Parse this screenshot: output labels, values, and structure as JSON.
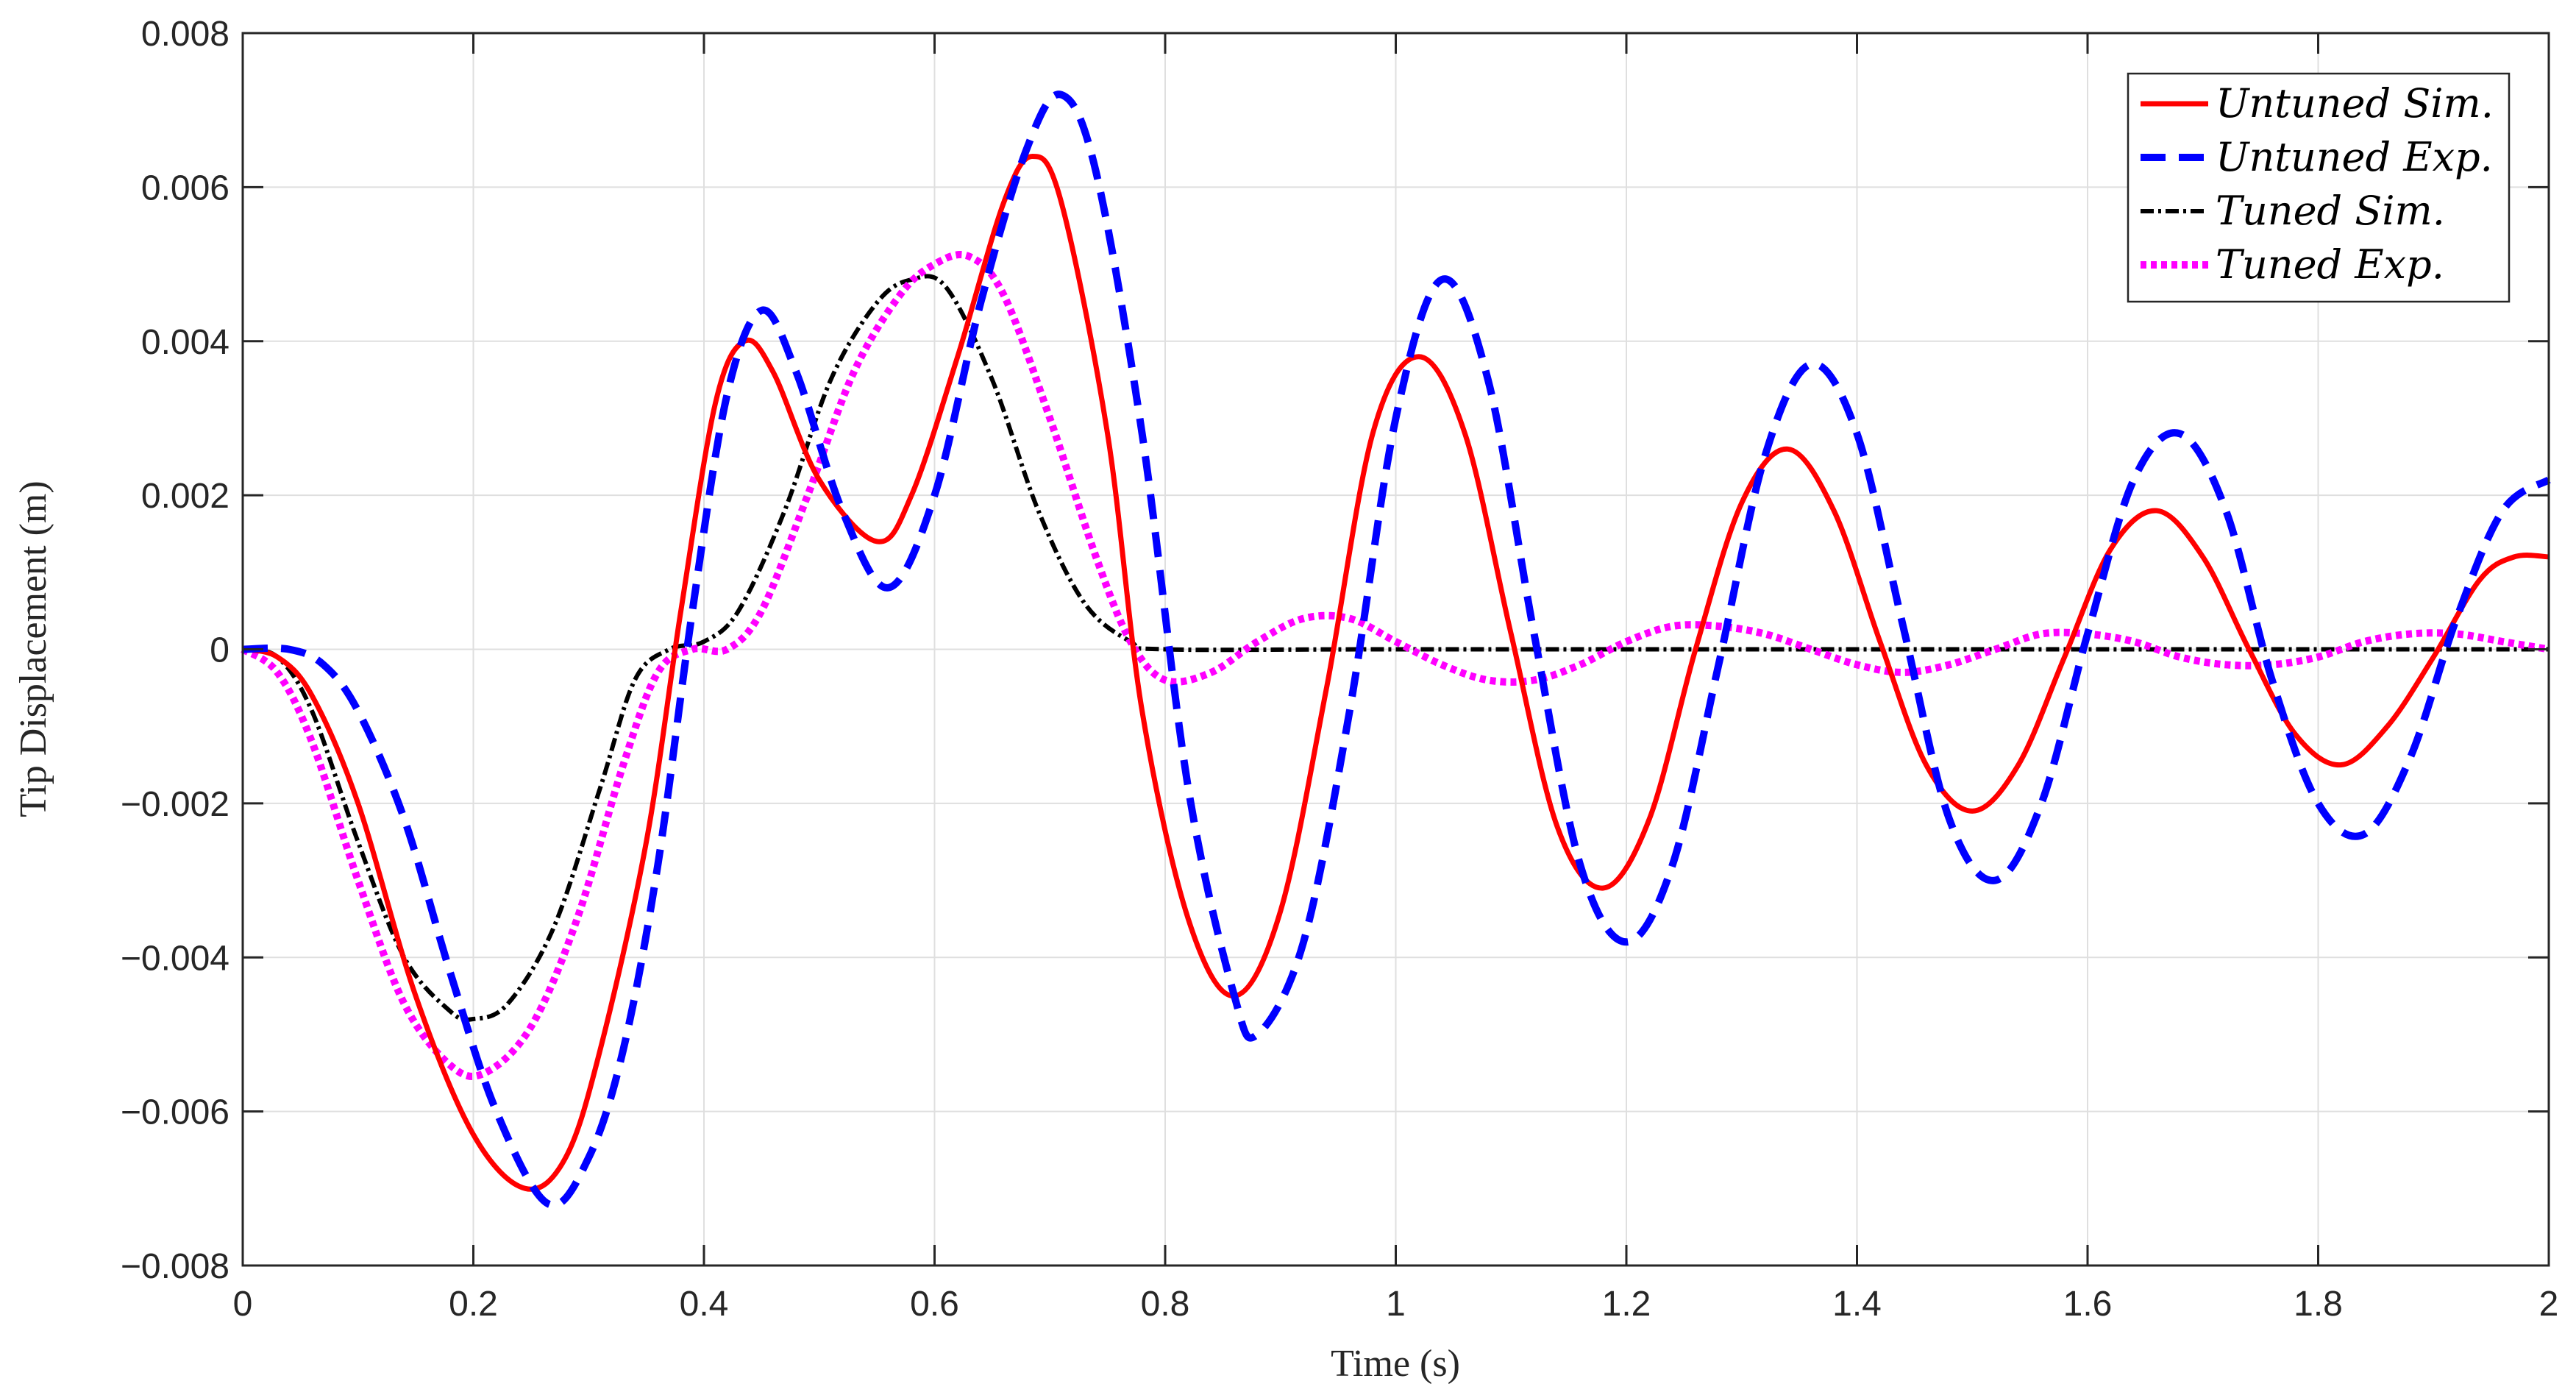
{
  "chart_data": {
    "type": "line",
    "title": "",
    "xlabel": "Time (s)",
    "ylabel": "Tip Displacement (m)",
    "xlim": [
      0,
      2
    ],
    "ylim": [
      -0.008,
      0.008
    ],
    "grid": true,
    "legend_position": "top-right",
    "x_ticks": [
      0,
      0.2,
      0.4,
      0.6,
      0.8,
      1,
      1.2,
      1.4,
      1.6,
      1.8,
      2
    ],
    "x_tick_labels": [
      "0",
      "0.2",
      "0.4",
      "0.6",
      "0.8",
      "1",
      "1.2",
      "1.4",
      "1.6",
      "1.8",
      "2"
    ],
    "y_ticks": [
      -0.008,
      -0.006,
      -0.004,
      -0.002,
      0,
      0.002,
      0.004,
      0.006,
      0.008
    ],
    "y_tick_labels": [
      "−0.008",
      "−0.006",
      "−0.004",
      "−0.002",
      "0",
      "0.002",
      "0.004",
      "0.006",
      "0.008"
    ],
    "series": [
      {
        "name": "Untuned Sim.",
        "color": "#ff0000",
        "style": "solid",
        "points": [
          [
            0,
            0
          ],
          [
            0.03,
            -0.0001
          ],
          [
            0.06,
            -0.0006
          ],
          [
            0.1,
            -0.002
          ],
          [
            0.15,
            -0.0045
          ],
          [
            0.2,
            -0.0063
          ],
          [
            0.245,
            -0.007
          ],
          [
            0.28,
            -0.0066
          ],
          [
            0.31,
            -0.0052
          ],
          [
            0.35,
            -0.0025
          ],
          [
            0.38,
            0.0005
          ],
          [
            0.41,
            0.0032
          ],
          [
            0.435,
            0.004
          ],
          [
            0.46,
            0.0036
          ],
          [
            0.5,
            0.0022
          ],
          [
            0.55,
            0.0014
          ],
          [
            0.58,
            0.002
          ],
          [
            0.62,
            0.0038
          ],
          [
            0.66,
            0.0058
          ],
          [
            0.685,
            0.0064
          ],
          [
            0.71,
            0.0058
          ],
          [
            0.75,
            0.0028
          ],
          [
            0.78,
            -0.0008
          ],
          [
            0.82,
            -0.0035
          ],
          [
            0.86,
            -0.0045
          ],
          [
            0.9,
            -0.0034
          ],
          [
            0.94,
            -0.0005
          ],
          [
            0.98,
            0.0028
          ],
          [
            1.02,
            0.0038
          ],
          [
            1.06,
            0.0028
          ],
          [
            1.1,
            0.0002
          ],
          [
            1.14,
            -0.0023
          ],
          [
            1.18,
            -0.0031
          ],
          [
            1.22,
            -0.0022
          ],
          [
            1.26,
            0
          ],
          [
            1.3,
            0.0019
          ],
          [
            1.34,
            0.0026
          ],
          [
            1.38,
            0.0018
          ],
          [
            1.42,
            0.0001
          ],
          [
            1.46,
            -0.0015
          ],
          [
            1.5,
            -0.0021
          ],
          [
            1.54,
            -0.0015
          ],
          [
            1.58,
            -0.0001
          ],
          [
            1.62,
            0.0013
          ],
          [
            1.66,
            0.0018
          ],
          [
            1.7,
            0.0012
          ],
          [
            1.74,
            0
          ],
          [
            1.78,
            -0.0011
          ],
          [
            1.82,
            -0.0015
          ],
          [
            1.86,
            -0.001
          ],
          [
            1.9,
            -0.0001
          ],
          [
            1.94,
            0.0009
          ],
          [
            1.97,
            0.0012
          ],
          [
            2,
            0.0012
          ]
        ]
      },
      {
        "name": "Untuned Exp.",
        "color": "#0000ff",
        "style": "dashed",
        "points": [
          [
            0,
            0
          ],
          [
            0.04,
            0
          ],
          [
            0.07,
            -0.0002
          ],
          [
            0.1,
            -0.0008
          ],
          [
            0.14,
            -0.0022
          ],
          [
            0.18,
            -0.0042
          ],
          [
            0.22,
            -0.006
          ],
          [
            0.265,
            -0.0072
          ],
          [
            0.3,
            -0.0066
          ],
          [
            0.33,
            -0.0052
          ],
          [
            0.36,
            -0.0028
          ],
          [
            0.39,
            0.0005
          ],
          [
            0.42,
            0.0033
          ],
          [
            0.45,
            0.0044
          ],
          [
            0.48,
            0.0036
          ],
          [
            0.52,
            0.0018
          ],
          [
            0.56,
            0.0008
          ],
          [
            0.6,
            0.002
          ],
          [
            0.64,
            0.0045
          ],
          [
            0.68,
            0.0065
          ],
          [
            0.71,
            0.0072
          ],
          [
            0.74,
            0.0062
          ],
          [
            0.78,
            0.0028
          ],
          [
            0.82,
            -0.0018
          ],
          [
            0.86,
            -0.0045
          ],
          [
            0.88,
            -0.005
          ],
          [
            0.92,
            -0.0038
          ],
          [
            0.96,
            -0.0008
          ],
          [
            1,
            0.003
          ],
          [
            1.04,
            0.0048
          ],
          [
            1.08,
            0.0035
          ],
          [
            1.12,
            0.0002
          ],
          [
            1.16,
            -0.0028
          ],
          [
            1.2,
            -0.0038
          ],
          [
            1.24,
            -0.0028
          ],
          [
            1.28,
            -0.0002
          ],
          [
            1.32,
            0.0025
          ],
          [
            1.36,
            0.0037
          ],
          [
            1.4,
            0.0028
          ],
          [
            1.44,
            0.0003
          ],
          [
            1.48,
            -0.0022
          ],
          [
            1.52,
            -0.003
          ],
          [
            1.56,
            -0.002
          ],
          [
            1.6,
            0.0002
          ],
          [
            1.64,
            0.0022
          ],
          [
            1.68,
            0.0028
          ],
          [
            1.72,
            0.0018
          ],
          [
            1.76,
            -0.0004
          ],
          [
            1.8,
            -0.002
          ],
          [
            1.84,
            -0.0024
          ],
          [
            1.88,
            -0.0014
          ],
          [
            1.92,
            0.0004
          ],
          [
            1.96,
            0.0018
          ],
          [
            2,
            0.0022
          ]
        ]
      },
      {
        "name": "Tuned Sim.",
        "color": "#000000",
        "style": "dashdot",
        "points": [
          [
            0,
            0
          ],
          [
            0.03,
            -0.0001
          ],
          [
            0.06,
            -0.0008
          ],
          [
            0.1,
            -0.0025
          ],
          [
            0.14,
            -0.004
          ],
          [
            0.18,
            -0.0047
          ],
          [
            0.2,
            -0.0048
          ],
          [
            0.23,
            -0.0046
          ],
          [
            0.27,
            -0.0036
          ],
          [
            0.31,
            -0.0018
          ],
          [
            0.34,
            -0.0004
          ],
          [
            0.37,
            0
          ],
          [
            0.4,
            0.0001
          ],
          [
            0.43,
            0.0005
          ],
          [
            0.47,
            0.0018
          ],
          [
            0.51,
            0.0035
          ],
          [
            0.55,
            0.0045
          ],
          [
            0.58,
            0.0048
          ],
          [
            0.61,
            0.0047
          ],
          [
            0.65,
            0.0035
          ],
          [
            0.69,
            0.0018
          ],
          [
            0.73,
            0.0006
          ],
          [
            0.77,
            0.0001
          ],
          [
            0.8,
            0
          ],
          [
            1,
            0
          ],
          [
            1.5,
            0
          ],
          [
            2,
            0
          ]
        ]
      },
      {
        "name": "Tuned Exp.",
        "color": "#ff00ff",
        "style": "dotted",
        "points": [
          [
            0,
            0
          ],
          [
            0.03,
            -0.0003
          ],
          [
            0.06,
            -0.0012
          ],
          [
            0.1,
            -0.003
          ],
          [
            0.14,
            -0.0046
          ],
          [
            0.18,
            -0.0054
          ],
          [
            0.21,
            -0.0055
          ],
          [
            0.25,
            -0.0049
          ],
          [
            0.29,
            -0.0035
          ],
          [
            0.33,
            -0.0015
          ],
          [
            0.36,
            -0.0003
          ],
          [
            0.39,
            0
          ],
          [
            0.42,
            0
          ],
          [
            0.45,
            0.0005
          ],
          [
            0.49,
            0.002
          ],
          [
            0.53,
            0.0036
          ],
          [
            0.57,
            0.0046
          ],
          [
            0.6,
            0.005
          ],
          [
            0.63,
            0.0051
          ],
          [
            0.66,
            0.0046
          ],
          [
            0.7,
            0.003
          ],
          [
            0.74,
            0.0012
          ],
          [
            0.77,
            0.0001
          ],
          [
            0.8,
            -0.0004
          ],
          [
            0.84,
            -0.0003
          ],
          [
            0.88,
            0.0001
          ],
          [
            0.92,
            0.0004
          ],
          [
            0.96,
            0.0004
          ],
          [
            1,
            0.0001
          ],
          [
            1.04,
            -0.0002
          ],
          [
            1.08,
            -0.0004
          ],
          [
            1.12,
            -0.0004
          ],
          [
            1.16,
            -0.0002
          ],
          [
            1.2,
            0.0001
          ],
          [
            1.24,
            0.0003
          ],
          [
            1.28,
            0.0003
          ],
          [
            1.32,
            0.0002
          ],
          [
            1.36,
            0
          ],
          [
            1.4,
            -0.0002
          ],
          [
            1.44,
            -0.0003
          ],
          [
            1.48,
            -0.0002
          ],
          [
            1.52,
            0
          ],
          [
            1.56,
            0.0002
          ],
          [
            1.6,
            0.0002
          ],
          [
            1.64,
            0.0001
          ],
          [
            1.68,
            -0.0001
          ],
          [
            1.72,
            -0.0002
          ],
          [
            1.76,
            -0.0002
          ],
          [
            1.8,
            -0.0001
          ],
          [
            1.84,
            0.0001
          ],
          [
            1.88,
            0.0002
          ],
          [
            1.92,
            0.0002
          ],
          [
            1.96,
            0.0001
          ],
          [
            2,
            0
          ]
        ]
      }
    ]
  }
}
